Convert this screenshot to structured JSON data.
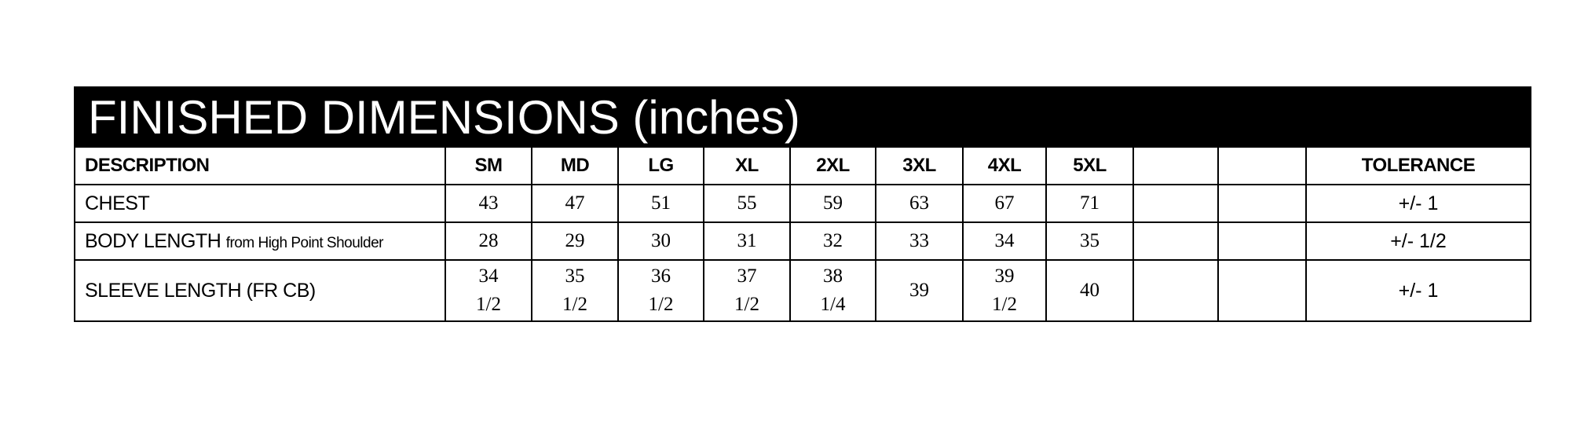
{
  "title": "FINISHED DIMENSIONS (inches)",
  "headers": {
    "description": "DESCRIPTION",
    "sizes": [
      "SM",
      "MD",
      "LG",
      "XL",
      "2XL",
      "3XL",
      "4XL",
      "5XL",
      "",
      ""
    ],
    "tolerance": "TOLERANCE"
  },
  "rows": [
    {
      "label": "CHEST",
      "sublabel": "",
      "values": [
        [
          "43",
          ""
        ],
        [
          "47",
          ""
        ],
        [
          "51",
          ""
        ],
        [
          "55",
          ""
        ],
        [
          "59",
          ""
        ],
        [
          "63",
          ""
        ],
        [
          "67",
          ""
        ],
        [
          "71",
          ""
        ],
        [
          "",
          ""
        ],
        [
          "",
          ""
        ]
      ],
      "tolerance": "+/- 1"
    },
    {
      "label": "BODY LENGTH",
      "sublabel": "from High Point Shoulder",
      "values": [
        [
          "28",
          ""
        ],
        [
          "29",
          ""
        ],
        [
          "30",
          ""
        ],
        [
          "31",
          ""
        ],
        [
          "32",
          ""
        ],
        [
          "33",
          ""
        ],
        [
          "34",
          ""
        ],
        [
          "35",
          ""
        ],
        [
          "",
          ""
        ],
        [
          "",
          ""
        ]
      ],
      "tolerance": "+/- 1/2"
    },
    {
      "label": "SLEEVE LENGTH (FR CB)",
      "sublabel": "",
      "values": [
        [
          "34",
          "1/2"
        ],
        [
          "35",
          "1/2"
        ],
        [
          "36",
          "1/2"
        ],
        [
          "37",
          "1/2"
        ],
        [
          "38",
          "1/4"
        ],
        [
          "39",
          ""
        ],
        [
          "39",
          "1/2"
        ],
        [
          "40",
          ""
        ],
        [
          "",
          ""
        ],
        [
          "",
          ""
        ]
      ],
      "tolerance": "+/- 1"
    }
  ]
}
